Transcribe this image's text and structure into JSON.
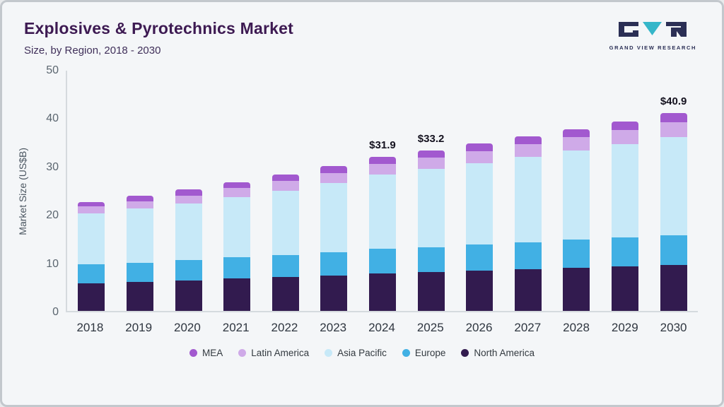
{
  "header": {
    "title": "Explosives & Pyrotechnics Market",
    "subtitle": "Size, by Region, 2018 - 2030"
  },
  "logo": {
    "text": "GRAND VIEW RESEARCH",
    "navy": "#2b2f55",
    "teal": "#35b6c9"
  },
  "chart_data": {
    "type": "bar",
    "stacked": true,
    "title": "Explosives & Pyrotechnics Market Size, by Region, 2018 - 2030",
    "xlabel": "",
    "ylabel": "Market Size (US$B)",
    "ylim": [
      0,
      50
    ],
    "yticks": [
      0,
      10,
      20,
      30,
      40,
      50
    ],
    "grid": false,
    "legend_position": "bottom",
    "categories": [
      "2018",
      "2019",
      "2020",
      "2021",
      "2022",
      "2023",
      "2024",
      "2025",
      "2026",
      "2027",
      "2028",
      "2029",
      "2030"
    ],
    "series": [
      {
        "name": "North America",
        "color": "#321b4f",
        "values": [
          5.7,
          6.0,
          6.3,
          6.7,
          7.0,
          7.3,
          7.7,
          8.0,
          8.3,
          8.6,
          8.9,
          9.2,
          9.5
        ]
      },
      {
        "name": "Europe",
        "color": "#41b0e4",
        "values": [
          3.9,
          4.0,
          4.2,
          4.4,
          4.6,
          4.9,
          5.1,
          5.2,
          5.4,
          5.6,
          5.8,
          6.0,
          6.2
        ]
      },
      {
        "name": "Asia Pacific",
        "color": "#c7e9f8",
        "values": [
          10.6,
          11.2,
          11.8,
          12.5,
          13.3,
          14.2,
          15.4,
          16.2,
          16.9,
          17.7,
          18.5,
          19.3,
          20.3
        ]
      },
      {
        "name": "Latin America",
        "color": "#cfaae8",
        "values": [
          1.4,
          1.5,
          1.6,
          1.8,
          2.0,
          2.1,
          2.2,
          2.3,
          2.4,
          2.6,
          2.7,
          2.9,
          3.1
        ]
      },
      {
        "name": "MEA",
        "color": "#a259cf",
        "values": [
          0.9,
          1.1,
          1.2,
          1.2,
          1.3,
          1.5,
          1.5,
          1.5,
          1.6,
          1.6,
          1.7,
          1.8,
          1.8
        ]
      }
    ],
    "value_labels": {
      "2024": "$31.9",
      "2025": "$33.2",
      "2030": "$40.9"
    },
    "legend_order": [
      "MEA",
      "Latin America",
      "Asia Pacific",
      "Europe",
      "North America"
    ]
  }
}
